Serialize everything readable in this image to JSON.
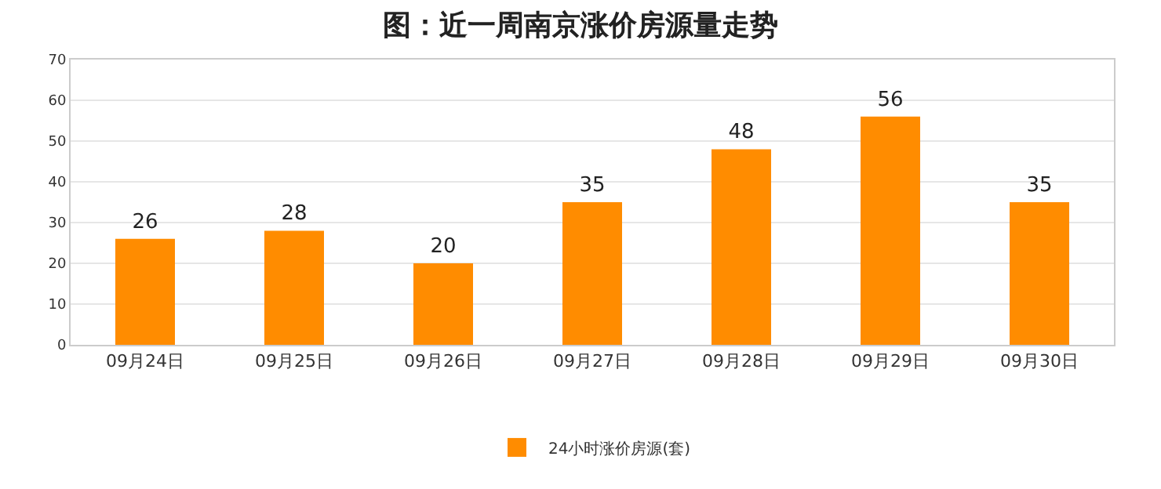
{
  "chart_data": {
    "type": "bar",
    "title": "图：近一周南京涨价房源量走势",
    "categories": [
      "09月24日",
      "09月25日",
      "09月26日",
      "09月27日",
      "09月28日",
      "09月29日",
      "09月30日"
    ],
    "series": [
      {
        "name": "24小时涨价房源(套)",
        "color": "#ff8c00",
        "values": [
          26,
          28,
          20,
          35,
          48,
          56,
          35
        ]
      }
    ],
    "ylim": [
      0,
      70
    ],
    "yticks": [
      0,
      10,
      20,
      30,
      40,
      50,
      60,
      70
    ],
    "grid": "y",
    "legend": "bottom",
    "data_labels": true
  }
}
